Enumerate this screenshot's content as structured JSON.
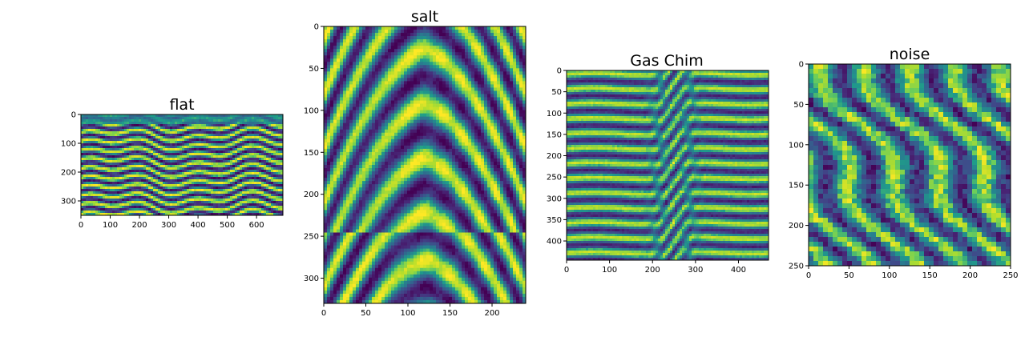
{
  "colormap": {
    "name": "viridis",
    "stops": [
      "#440154",
      "#482777",
      "#3f4a8a",
      "#31678e",
      "#26838f",
      "#1f9d8a",
      "#6cce5a",
      "#b6de2b",
      "#fee825"
    ]
  },
  "chart_data": [
    {
      "type": "heatmap",
      "title": "flat",
      "xlabel": "",
      "ylabel": "",
      "xlim": [
        0,
        690
      ],
      "ylim": [
        350,
        0
      ],
      "xticks": [
        0,
        100,
        200,
        300,
        400,
        500,
        600
      ],
      "yticks": [
        0,
        100,
        200,
        300
      ],
      "xtick_labels": [
        "0",
        "100",
        "200",
        "300",
        "400",
        "500",
        "600"
      ],
      "ytick_labels": [
        "0",
        "100",
        "200",
        "300"
      ],
      "grid": false,
      "pattern": "flat layered reflectors with bright horizons near rows 80, 110, 150 and 200"
    },
    {
      "type": "heatmap",
      "title": "salt",
      "xlabel": "",
      "ylabel": "",
      "xlim": [
        0,
        240
      ],
      "ylim": [
        330,
        0
      ],
      "xticks": [
        0,
        50,
        100,
        150,
        200
      ],
      "yticks": [
        0,
        50,
        100,
        150,
        200,
        250,
        300
      ],
      "xtick_labels": [
        "0",
        "50",
        "100",
        "150",
        "200"
      ],
      "ytick_labels": [
        "0",
        "50",
        "100",
        "150",
        "200",
        "250",
        "300"
      ],
      "grid": false,
      "pattern": "salt dome anticline with crest near x 120, y 90"
    },
    {
      "type": "heatmap",
      "title": "Gas Chim",
      "xlabel": "",
      "ylabel": "",
      "xlim": [
        0,
        470
      ],
      "ylim": [
        445,
        0
      ],
      "xticks": [
        0,
        100,
        200,
        300,
        400
      ],
      "yticks": [
        0,
        50,
        100,
        150,
        200,
        250,
        300,
        350,
        400
      ],
      "xtick_labels": [
        "0",
        "100",
        "200",
        "300",
        "400"
      ],
      "ytick_labels": [
        "0",
        "50",
        "100",
        "150",
        "200",
        "250",
        "300",
        "350",
        "400"
      ],
      "grid": false,
      "pattern": "horizontal reflectors with a vertical gas chimney centered near x 250"
    },
    {
      "type": "heatmap",
      "title": "noise",
      "xlabel": "",
      "ylabel": "",
      "xlim": [
        0,
        250
      ],
      "ylim": [
        250,
        0
      ],
      "xticks": [
        0,
        50,
        100,
        150,
        200,
        250
      ],
      "yticks": [
        0,
        50,
        100,
        150,
        200,
        250
      ],
      "xtick_labels": [
        "0",
        "50",
        "100",
        "150",
        "200",
        "250"
      ],
      "ytick_labels": [
        "0",
        "50",
        "100",
        "150",
        "200",
        "250"
      ],
      "grid": false,
      "pattern": "random blocky texture"
    }
  ]
}
